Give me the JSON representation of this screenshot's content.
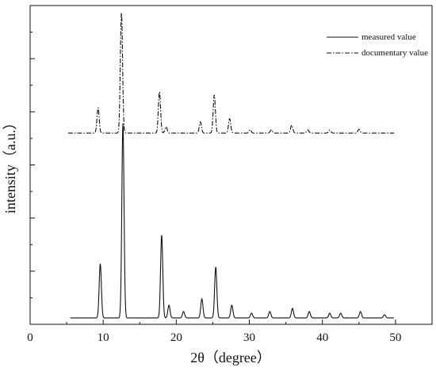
{
  "chart_data": {
    "type": "line",
    "xlabel": "2θ（degree）",
    "ylabel": "intensity（a.u.）",
    "xlim": [
      0,
      55
    ],
    "xticks": [
      0,
      10,
      20,
      30,
      40,
      50
    ],
    "y_tick_labels_shown": false,
    "grid": false,
    "legend_position": "top-right",
    "series": [
      {
        "name": "measured value",
        "line_style": "solid",
        "x_range": [
          5.5,
          49.8
        ],
        "baseline": 0.02,
        "peaks": [
          {
            "x": 9.6,
            "y": 0.17
          },
          {
            "x": 12.7,
            "y": 0.61
          },
          {
            "x": 18.0,
            "y": 0.26
          },
          {
            "x": 19.0,
            "y": 0.04
          },
          {
            "x": 21.0,
            "y": 0.02
          },
          {
            "x": 23.5,
            "y": 0.06
          },
          {
            "x": 25.4,
            "y": 0.16
          },
          {
            "x": 27.6,
            "y": 0.04
          },
          {
            "x": 30.3,
            "y": 0.015
          },
          {
            "x": 32.8,
            "y": 0.02
          },
          {
            "x": 35.9,
            "y": 0.03
          },
          {
            "x": 38.2,
            "y": 0.02
          },
          {
            "x": 41.0,
            "y": 0.015
          },
          {
            "x": 42.5,
            "y": 0.015
          },
          {
            "x": 45.2,
            "y": 0.02
          },
          {
            "x": 48.5,
            "y": 0.01
          }
        ]
      },
      {
        "name": "documentary value",
        "line_style": "dash-dot",
        "x_range": [
          5.2,
          49.8
        ],
        "baseline": 0.6,
        "peaks": [
          {
            "x": 9.3,
            "y": 0.08
          },
          {
            "x": 12.5,
            "y": 0.38
          },
          {
            "x": 17.7,
            "y": 0.13
          },
          {
            "x": 18.6,
            "y": 0.02
          },
          {
            "x": 23.3,
            "y": 0.035
          },
          {
            "x": 25.2,
            "y": 0.12
          },
          {
            "x": 27.3,
            "y": 0.045
          },
          {
            "x": 30.1,
            "y": 0.01
          },
          {
            "x": 33.0,
            "y": 0.01
          },
          {
            "x": 35.8,
            "y": 0.025
          },
          {
            "x": 38.0,
            "y": 0.01
          },
          {
            "x": 41.0,
            "y": 0.01
          },
          {
            "x": 45.0,
            "y": 0.012
          }
        ]
      }
    ]
  }
}
